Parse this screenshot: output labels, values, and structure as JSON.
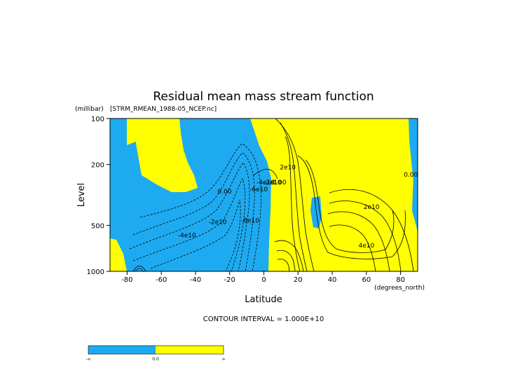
{
  "chart_data": {
    "type": "heatmap",
    "title": "Residual mean mass stream function",
    "subtitle": "[STRM_RMEAN_1988-05_NCEP.nc]",
    "xlabel": "Latitude",
    "x_units": "(degrees_north)",
    "ylabel": "Level",
    "y_units": "(millibar)",
    "xlim": [
      -90,
      90
    ],
    "ylim": [
      1000,
      100
    ],
    "y_scale": "log",
    "x_ticks": [
      "-80",
      "-60",
      "-40",
      "-20",
      "0",
      "20",
      "40",
      "60",
      "80"
    ],
    "y_ticks": [
      "100",
      "200",
      "500",
      "1000"
    ],
    "contour_interval_text": "CONTOUR INTERVAL = 1.000E+10",
    "contour_labels": [
      {
        "text": "0.00",
        "lat": -23,
        "p": 310
      },
      {
        "text": "-2e10",
        "lat": -27,
        "p": 490
      },
      {
        "text": "-4e10",
        "lat": -45,
        "p": 600
      },
      {
        "text": "-8e10",
        "lat": -8,
        "p": 480
      },
      {
        "text": "-6e10",
        "lat": -3,
        "p": 300
      },
      {
        "text": "-4e10",
        "lat": 1,
        "p": 270
      },
      {
        "text": "-2e10",
        "lat": 5,
        "p": 270
      },
      {
        "text": "0.00",
        "lat": 9,
        "p": 270
      },
      {
        "text": "2e10",
        "lat": 14,
        "p": 215
      },
      {
        "text": "2e10",
        "lat": 63,
        "p": 390
      },
      {
        "text": "4e10",
        "lat": 60,
        "p": 700
      },
      {
        "text": "0.00",
        "lat": 86,
        "p": 240
      }
    ],
    "positive_regions": [
      "upper-left -74 to -64 from 100 to 300 mb",
      "lower-left -90 to -80 near 1000 mb",
      "north of equator 5 to 82 at all levels",
      "80 to 90 near 500 to 1000 mb"
    ],
    "negative_regions": [
      "-90 to 5 mid and lower levels, minimum near -8e10 at 10S",
      "band near 25N 300 to 500 mb",
      "82 to 90 above 500 mb"
    ],
    "colorbar": {
      "labels": [
        "-∞",
        "0.0",
        "∞"
      ],
      "colors": [
        "#1eaaf0",
        "#ffff00"
      ]
    },
    "colors": {
      "negative": "#1eaaf0",
      "positive": "#ffff00",
      "contour": "#000000"
    }
  }
}
